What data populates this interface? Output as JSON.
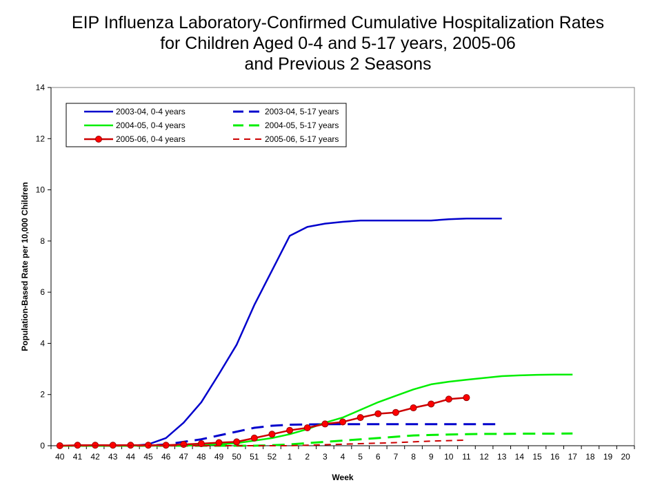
{
  "chart_data": {
    "type": "line",
    "title_lines": [
      "EIP Influenza Laboratory-Confirmed Cumulative Hospitalization Rates",
      "for Children Aged 0-4 and 5-17 years, 2005-06",
      "and Previous 2 Seasons"
    ],
    "xlabel": "Week",
    "ylabel": "Population-Based Rate per 10,000 Children",
    "ylim": [
      0,
      14
    ],
    "yticks": [
      "0",
      "2",
      "4",
      "6",
      "8",
      "10",
      "12",
      "14"
    ],
    "categories": [
      "40",
      "41",
      "42",
      "43",
      "44",
      "45",
      "46",
      "47",
      "48",
      "49",
      "50",
      "51",
      "52",
      "1",
      "2",
      "3",
      "4",
      "5",
      "6",
      "7",
      "8",
      "9",
      "10",
      "11",
      "12",
      "13",
      "14",
      "15",
      "16",
      "17",
      "18",
      "19",
      "20"
    ],
    "grid": false,
    "legend_position": "top-left",
    "series": [
      {
        "name": "2003-04, 0-4 years",
        "color": "#0000cc",
        "style": "solid",
        "marker": "none",
        "values": [
          0,
          0,
          0,
          0,
          0,
          0.05,
          0.3,
          0.9,
          1.7,
          2.8,
          3.95,
          5.5,
          6.85,
          8.2,
          8.55,
          8.68,
          8.75,
          8.8,
          8.8,
          8.8,
          8.8,
          8.8,
          8.85,
          8.88,
          8.88,
          8.88,
          null,
          null,
          null,
          null,
          null,
          null,
          null
        ]
      },
      {
        "name": "2003-04, 5-17 years",
        "color": "#0000cc",
        "style": "dashed",
        "marker": "none",
        "values": [
          0,
          0,
          0,
          0,
          0,
          0,
          0.05,
          0.15,
          0.25,
          0.4,
          0.55,
          0.7,
          0.78,
          0.82,
          0.83,
          0.84,
          0.84,
          0.84,
          0.84,
          0.84,
          0.84,
          0.84,
          0.84,
          0.84,
          0.84,
          0.84,
          null,
          null,
          null,
          null,
          null,
          null,
          null
        ]
      },
      {
        "name": "2004-05, 0-4 years",
        "color": "#00ee00",
        "style": "solid",
        "marker": "none",
        "values": [
          0,
          0,
          0,
          0,
          0,
          0,
          0,
          0,
          0.02,
          0.05,
          0.1,
          0.2,
          0.3,
          0.45,
          0.65,
          0.9,
          1.1,
          1.4,
          1.7,
          1.95,
          2.2,
          2.4,
          2.5,
          2.58,
          2.65,
          2.72,
          2.75,
          2.77,
          2.78,
          2.78,
          null,
          null,
          null
        ]
      },
      {
        "name": "2004-05, 5-17 years",
        "color": "#00ee00",
        "style": "dashed",
        "marker": "none",
        "values": [
          0,
          0,
          0,
          0,
          0,
          0,
          0,
          0,
          0,
          0,
          0,
          0,
          0.02,
          0.05,
          0.1,
          0.15,
          0.2,
          0.25,
          0.3,
          0.35,
          0.4,
          0.42,
          0.44,
          0.45,
          0.46,
          0.46,
          0.47,
          0.47,
          0.47,
          0.48,
          null,
          null,
          null
        ]
      },
      {
        "name": "2005-06, 0-4 years",
        "color": "#cc0000",
        "style": "solid",
        "marker": "circle",
        "values": [
          0,
          0.02,
          0.02,
          0.02,
          0.02,
          0.02,
          0.02,
          0.05,
          0.08,
          0.12,
          0.15,
          0.3,
          0.45,
          0.6,
          0.7,
          0.85,
          0.93,
          1.1,
          1.25,
          1.3,
          1.48,
          1.63,
          1.82,
          1.88,
          null,
          null,
          null,
          null,
          null,
          null,
          null,
          null,
          null
        ]
      },
      {
        "name": "2005-06, 5-17 years",
        "color": "#cc0000",
        "style": "dashed",
        "marker": "none",
        "values": [
          0,
          0,
          0,
          0,
          0,
          0,
          0,
          0,
          0,
          0,
          0,
          0,
          0,
          0,
          0.02,
          0.04,
          0.06,
          0.08,
          0.1,
          0.12,
          0.15,
          0.18,
          0.2,
          0.22,
          null,
          null,
          null,
          null,
          null,
          null,
          null,
          null,
          null
        ]
      }
    ]
  }
}
